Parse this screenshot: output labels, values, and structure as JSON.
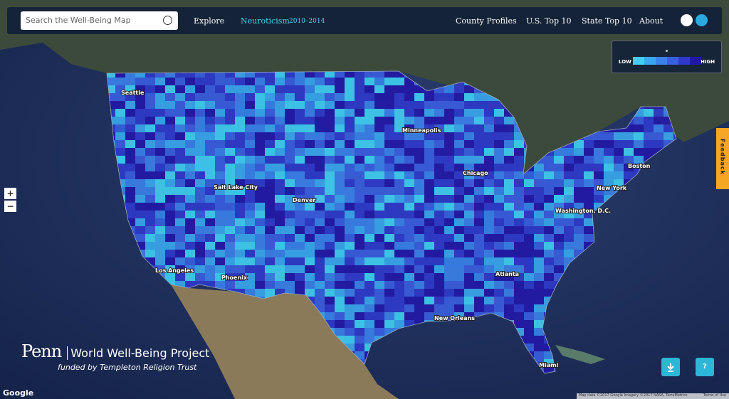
{
  "search": {
    "placeholder": "Search the Well-Being Map"
  },
  "nav": {
    "explore": "Explore",
    "measure": "Neuroticism",
    "years": "2010–2014",
    "links": [
      "County Profiles",
      "U.S. Top 10",
      "State Top 10",
      "About"
    ]
  },
  "legend": {
    "low": "LOW",
    "high": "HIGH",
    "colors": [
      "#3fd0f2",
      "#3aa8ee",
      "#3a82ea",
      "#3a5ee0",
      "#2f3acb",
      "#2218a8"
    ]
  },
  "cities": [
    "Seattle",
    "Minneapolis",
    "Chicago",
    "Boston",
    "Salt Lake City",
    "Denver",
    "New York",
    "Washington, D.C.",
    "Los Angeles",
    "Phoenix",
    "Atlanta",
    "New Orleans",
    "Miami"
  ],
  "zoom": {
    "in": "+",
    "out": "−"
  },
  "feedback": "Feedback",
  "branding": {
    "logo": "Penn",
    "project": "World Well-Being Project",
    "funding": "funded by Templeton Religion Trust"
  },
  "help": "?",
  "attribution": {
    "google": "Google",
    "map_data": "Map data ©2017 Google Imagery ©2017 NASA, TerraMetrics",
    "terms": "Terms of Use"
  }
}
